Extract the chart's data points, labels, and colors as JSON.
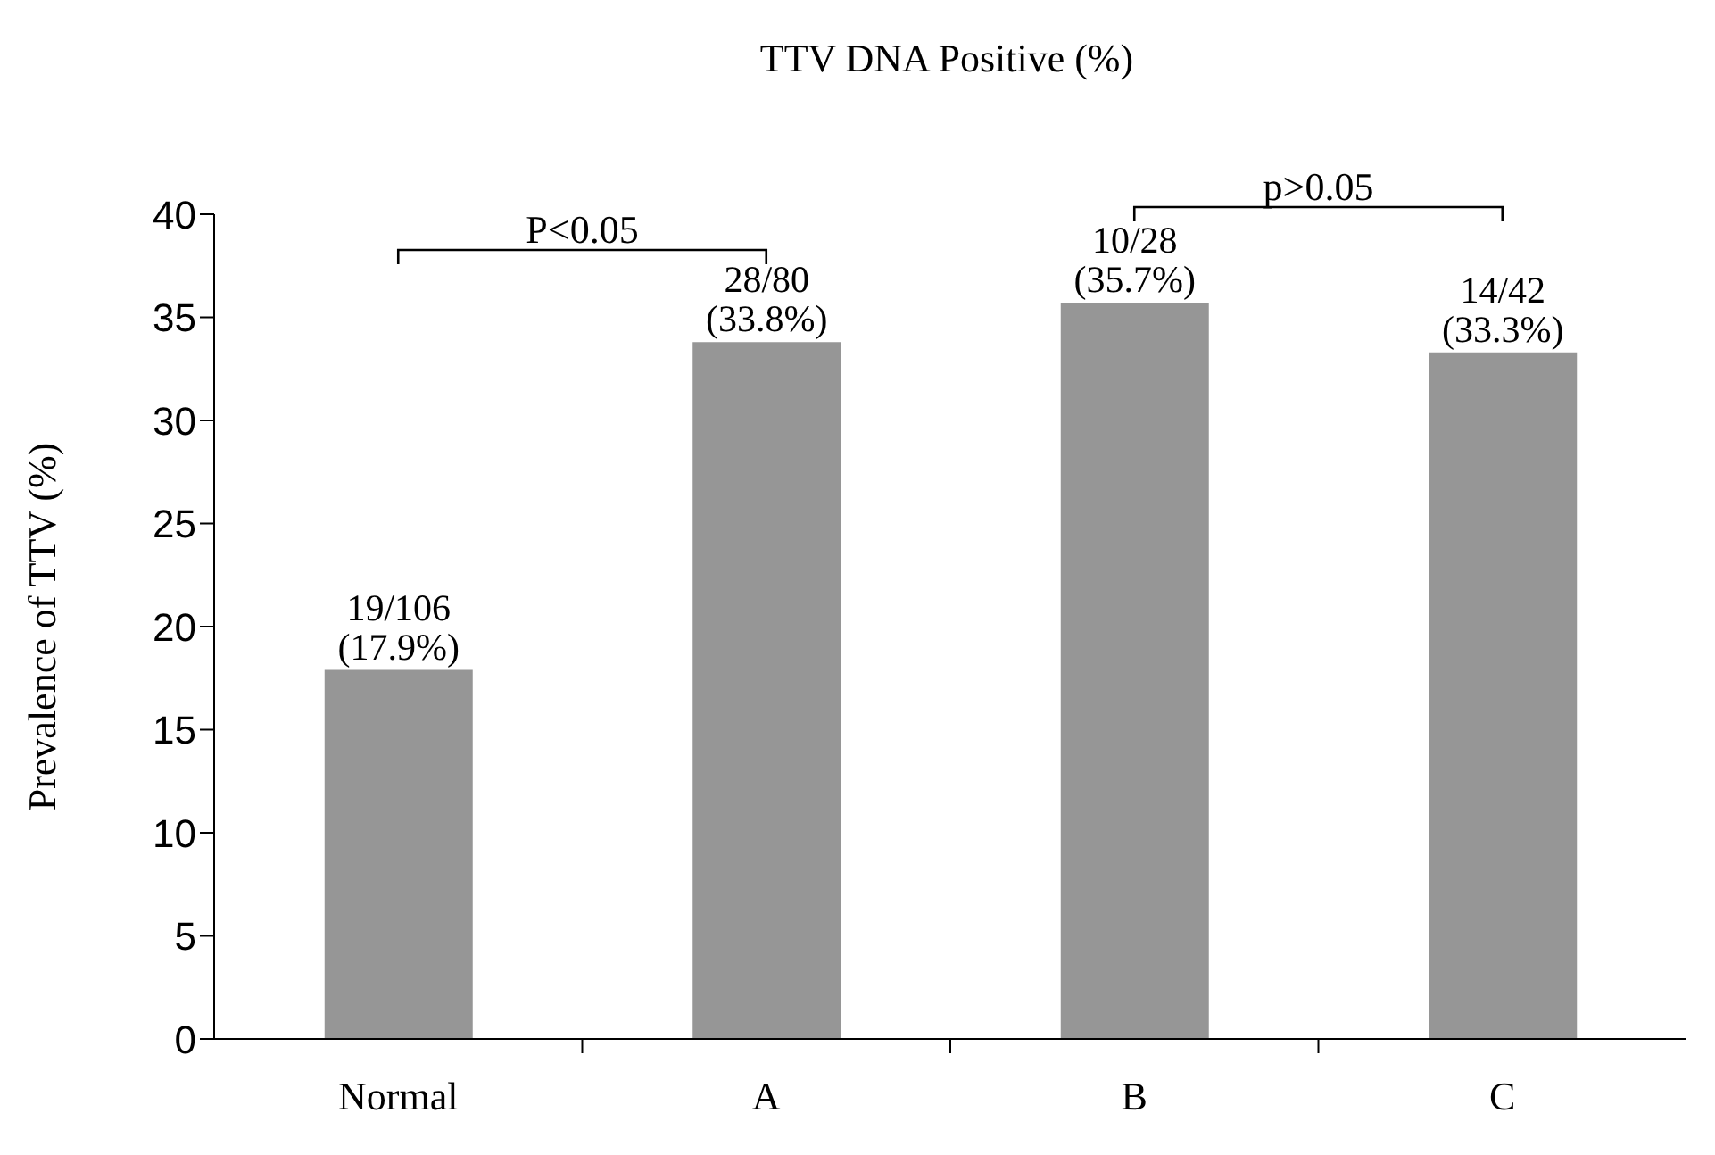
{
  "chart_data": {
    "type": "bar",
    "title": "TTV DNA Positive (%)",
    "ylabel": "Prevalence of TTV (%)",
    "categories": [
      "Normal",
      "A",
      "B",
      "C"
    ],
    "values": [
      17.9,
      33.8,
      35.7,
      33.3
    ],
    "value_labels": [
      "19/106\n(17.9%)",
      "28/80\n(33.8%)",
      "10/28\n(35.7%)",
      "14/42\n(33.3%)"
    ],
    "color": "#969696",
    "ylim": [
      0,
      40
    ],
    "yticks": [
      0,
      5,
      10,
      15,
      20,
      25,
      30,
      35,
      40
    ],
    "grid": false,
    "legend": false,
    "annotations": [
      "P<0.05",
      "p>0.05"
    ]
  }
}
